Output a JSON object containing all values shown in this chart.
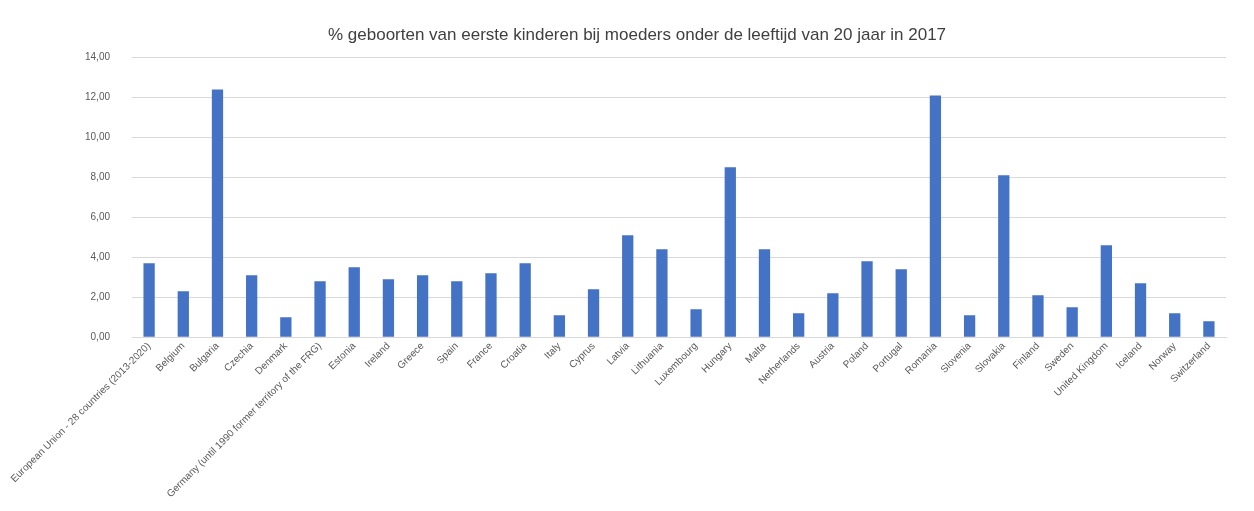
{
  "chart_data": {
    "type": "bar",
    "title": "% geboorten van eerste kinderen bij moeders onder de leeftijd van 20 jaar in 2017",
    "categories": [
      "European Union - 28 countries (2013-2020)",
      "Belgium",
      "Bulgaria",
      "Czechia",
      "Denmark",
      "Germany (until 1990 former territory of the FRG)",
      "Estonia",
      "Ireland",
      "Greece",
      "Spain",
      "France",
      "Croatia",
      "Italy",
      "Cyprus",
      "Latvia",
      "Lithuania",
      "Luxembourg",
      "Hungary",
      "Malta",
      "Netherlands",
      "Austria",
      "Poland",
      "Portugal",
      "Romania",
      "Slovenia",
      "Slovakia",
      "Finland",
      "Sweden",
      "United Kingdom",
      "Iceland",
      "Norway",
      "Switzerland"
    ],
    "values": [
      3.7,
      2.3,
      12.4,
      3.1,
      1.0,
      2.8,
      3.5,
      2.9,
      3.1,
      2.8,
      3.2,
      3.7,
      1.1,
      2.4,
      5.1,
      4.4,
      1.4,
      8.5,
      4.4,
      1.2,
      2.2,
      3.8,
      3.4,
      12.1,
      1.1,
      8.1,
      2.1,
      1.5,
      4.6,
      2.7,
      1.2,
      0.8
    ],
    "color": "#4472c4",
    "ylim": [
      0,
      14
    ],
    "yticks": [
      {
        "value": 0,
        "label": "0,00"
      },
      {
        "value": 2,
        "label": "2,00"
      },
      {
        "value": 4,
        "label": "4,00"
      },
      {
        "value": 6,
        "label": "6,00"
      },
      {
        "value": 8,
        "label": "8,00"
      },
      {
        "value": 10,
        "label": "10,00"
      },
      {
        "value": 12,
        "label": "12,00"
      },
      {
        "value": 14,
        "label": "14,00"
      }
    ],
    "grid": "y"
  }
}
